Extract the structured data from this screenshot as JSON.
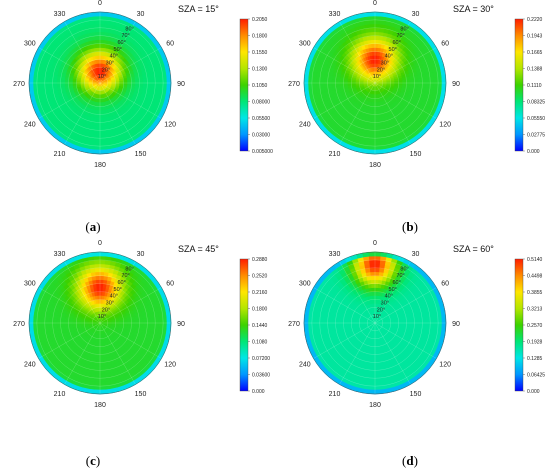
{
  "chart_data": [
    {
      "type": "heatmap",
      "projection": "polar",
      "title": "SZA = 15°",
      "caption": "a",
      "azimuth_labels": [
        "0",
        "30",
        "60",
        "90",
        "120",
        "150",
        "180",
        "210",
        "240",
        "270",
        "300",
        "330"
      ],
      "zenith_labels": [
        "10°",
        "20°",
        "30°",
        "40°",
        "50°",
        "60°",
        "70°",
        "80°"
      ],
      "colorbar_ticks": [
        "0.2050",
        "0.1800",
        "0.1550",
        "0.1300",
        "0.1050",
        "0.08000",
        "0.05500",
        "0.03000",
        "0.005000"
      ],
      "range": [
        0.005,
        0.205
      ],
      "peak": {
        "azimuth_deg": 0,
        "zenith_deg": 15
      },
      "edge_value": 0.08,
      "edge_rim": 0.01
    },
    {
      "type": "heatmap",
      "projection": "polar",
      "title": "SZA = 30°",
      "caption": "b",
      "azimuth_labels": [
        "0",
        "30",
        "60",
        "90",
        "120",
        "150",
        "180",
        "210",
        "240",
        "270",
        "300",
        "330"
      ],
      "zenith_labels": [
        "10°",
        "20°",
        "30°",
        "40°",
        "50°",
        "60°",
        "70°",
        "80°"
      ],
      "colorbar_ticks": [
        "0.2220",
        "0.1943",
        "0.1665",
        "0.1388",
        "0.1110",
        "0.08325",
        "0.05550",
        "0.02775",
        "0.000"
      ],
      "range": [
        0.0,
        0.222
      ],
      "peak": {
        "azimuth_deg": 0,
        "zenith_deg": 30
      },
      "edge_value": 0.1,
      "edge_rim": 0.01
    },
    {
      "type": "heatmap",
      "projection": "polar",
      "title": "SZA = 45°",
      "caption": "c",
      "azimuth_labels": [
        "0",
        "30",
        "60",
        "90",
        "120",
        "150",
        "180",
        "210",
        "240",
        "270",
        "300",
        "330"
      ],
      "zenith_labels": [
        "10°",
        "20°",
        "30°",
        "40°",
        "50°",
        "60°",
        "70°",
        "80°"
      ],
      "colorbar_ticks": [
        "0.2880",
        "0.2520",
        "0.2160",
        "0.1800",
        "0.1440",
        "0.1080",
        "0.07200",
        "0.03600",
        "0.000"
      ],
      "range": [
        0.0,
        0.288
      ],
      "peak": {
        "azimuth_deg": 0,
        "zenith_deg": 45
      },
      "edge_value": 0.13,
      "edge_rim": 0.01
    },
    {
      "type": "heatmap",
      "projection": "polar",
      "title": "SZA = 60°",
      "caption": "d",
      "azimuth_labels": [
        "0",
        "30",
        "60",
        "90",
        "120",
        "150",
        "180",
        "210",
        "240",
        "270",
        "300",
        "330"
      ],
      "zenith_labels": [
        "10°",
        "20°",
        "30°",
        "40°",
        "50°",
        "60°",
        "70°",
        "80°"
      ],
      "colorbar_ticks": [
        "0.5140",
        "0.4498",
        "0.3855",
        "0.3213",
        "0.2570",
        "0.1928",
        "0.1285",
        "0.06425",
        "0.000"
      ],
      "range": [
        0.0,
        0.514
      ],
      "peak": {
        "azimuth_deg": 0,
        "zenith_deg": 75
      },
      "edge_value": 0.17,
      "edge_rim": 0.02
    }
  ],
  "colormap": [
    "#0000ff",
    "#0096ff",
    "#00e6e6",
    "#00e676",
    "#3cd200",
    "#b4e600",
    "#ffe600",
    "#ff8c00",
    "#ff1e00"
  ]
}
